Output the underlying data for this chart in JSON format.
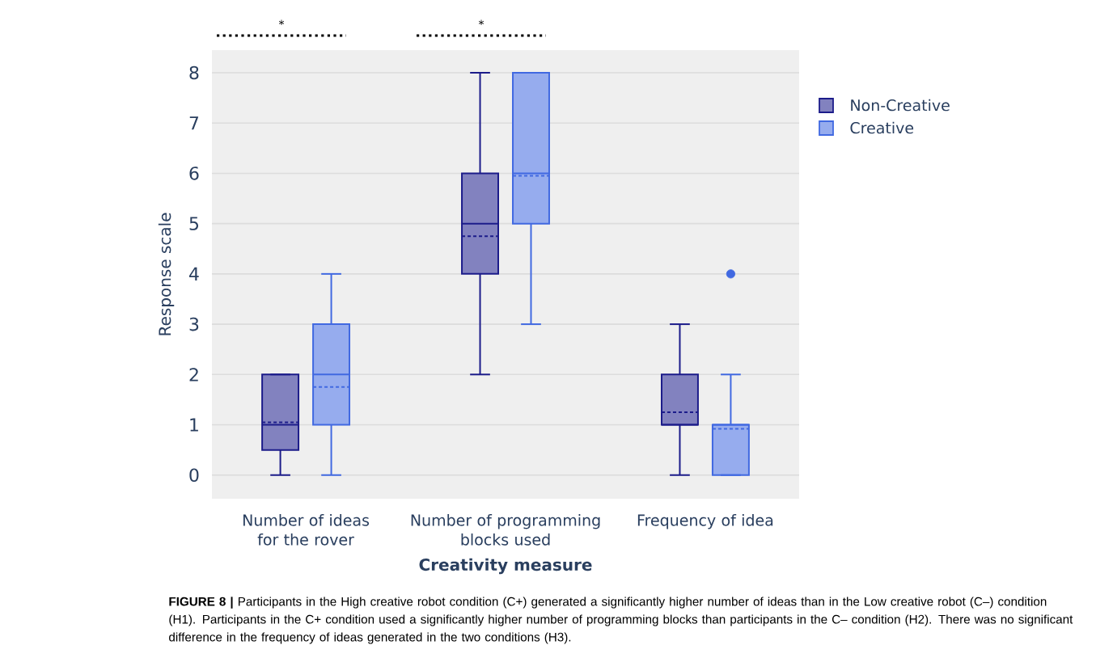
{
  "chart_data": {
    "type": "box",
    "categories": [
      "Number of ideas for the rover",
      "Number of programming blocks used",
      "Frequency of idea"
    ],
    "xlabel": "Creativity measure",
    "ylabel": "Response scale",
    "ylim": [
      -0.47,
      8.45
    ],
    "yticks": [
      0,
      1,
      2,
      3,
      4,
      5,
      6,
      7,
      8
    ],
    "grid": "y",
    "legend": "top right",
    "series": [
      {
        "name": "Non-Creative",
        "color": "#1c1c8a",
        "boxes": [
          {
            "low": 0,
            "q1": 0.5,
            "median": 1,
            "q3": 2,
            "high": 2,
            "mean": 1.05
          },
          {
            "low": 2,
            "q1": 4,
            "median": 5,
            "q3": 6,
            "high": 8,
            "mean": 4.75
          },
          {
            "low": 0,
            "q1": 1,
            "median": 1,
            "q3": 2,
            "high": 3,
            "mean": 1.25
          }
        ]
      },
      {
        "name": "Creative",
        "color": "#4169e1",
        "boxes": [
          {
            "low": 0,
            "q1": 1,
            "median": 2,
            "q3": 3,
            "high": 4,
            "mean": 1.75
          },
          {
            "low": 3,
            "q1": 5,
            "median": 6,
            "q3": 8,
            "high": 8,
            "mean": 5.95
          },
          {
            "low": 0,
            "q1": 0,
            "median": 1,
            "q3": 1,
            "high": 2,
            "mean": 0.92,
            "outliers": [
              4
            ]
          }
        ]
      }
    ],
    "annotations": [
      "*",
      "*",
      "**FIGURE 8 |** Participants in the High creative robot condition (C+) generated a significantly higher number of ideas than in the Low creative robot (C–) condition (H1). Participants in the C+ condition used a significantly higher number of programming blocks than participants in the C– condition (H2). There was no significant difference in the frequency of ideas generated in the two conditions (H3)."
    ]
  }
}
